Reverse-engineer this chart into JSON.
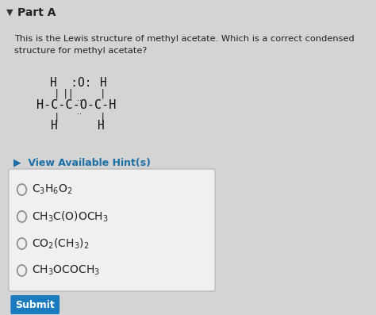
{
  "background_color": "#d8d8d8",
  "header_text": "Part A",
  "question_text": "This is the Lewis structure of methyl acetate. Which is a correct condensed\nstructure for methyl acetate?",
  "hint_color": "#1a6fa8",
  "submit_bg": "#1a7bbf",
  "submit_text": "Submit",
  "submit_text_color": "#ffffff",
  "box_bg": "#f0f0f0",
  "box_border": "#bbbbbb",
  "panel_bg": "#d4d4d4"
}
